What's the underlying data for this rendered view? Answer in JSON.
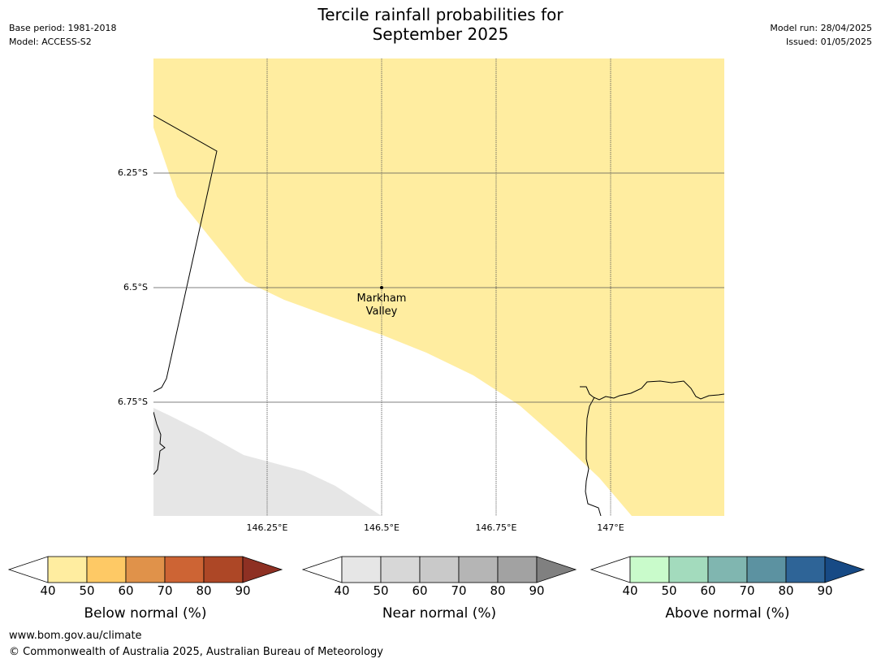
{
  "header": {
    "title_line1": "Tercile rainfall probabilities for",
    "title_line2": "September 2025",
    "base_period": "Base period: 1981-2018",
    "model": "Model: ACCESS-S2",
    "model_run": "Model run: 28/04/2025",
    "issued": "Issued: 01/05/2025"
  },
  "map": {
    "lat_labels": [
      "6.25°S",
      "6.5°S",
      "6.75°S"
    ],
    "lon_labels": [
      "146.25°E",
      "146.5°E",
      "146.75°E",
      "147°E"
    ],
    "place": {
      "line1": "Markham",
      "line2": "Valley"
    },
    "colors": {
      "below_40_50": "#ffeda0",
      "near_40_50": "#e6e6e6",
      "ocean": "#ffffff"
    }
  },
  "colorbars": [
    {
      "label": "Below normal (%)",
      "ticks": [
        "40",
        "50",
        "60",
        "70",
        "80",
        "90"
      ],
      "colors": [
        "#ffeda0",
        "#fec965",
        "#e0924a",
        "#cd6434",
        "#ad4726",
        "#8e3023"
      ]
    },
    {
      "label": "Near normal (%)",
      "ticks": [
        "40",
        "50",
        "60",
        "70",
        "80",
        "90"
      ],
      "colors": [
        "#e6e6e6",
        "#d7d7d7",
        "#c9c9c9",
        "#b5b5b5",
        "#a2a2a2",
        "#808080"
      ]
    },
    {
      "label": "Above normal (%)",
      "ticks": [
        "40",
        "50",
        "60",
        "70",
        "80",
        "90"
      ],
      "colors": [
        "#c9fbcb",
        "#a3dbbd",
        "#80b6b0",
        "#5c92a1",
        "#2e6497",
        "#174a85"
      ]
    }
  ],
  "footer": {
    "url": "www.bom.gov.au/climate",
    "copyright": "© Commonwealth of Australia 2025, Australian Bureau of Meteorology"
  }
}
